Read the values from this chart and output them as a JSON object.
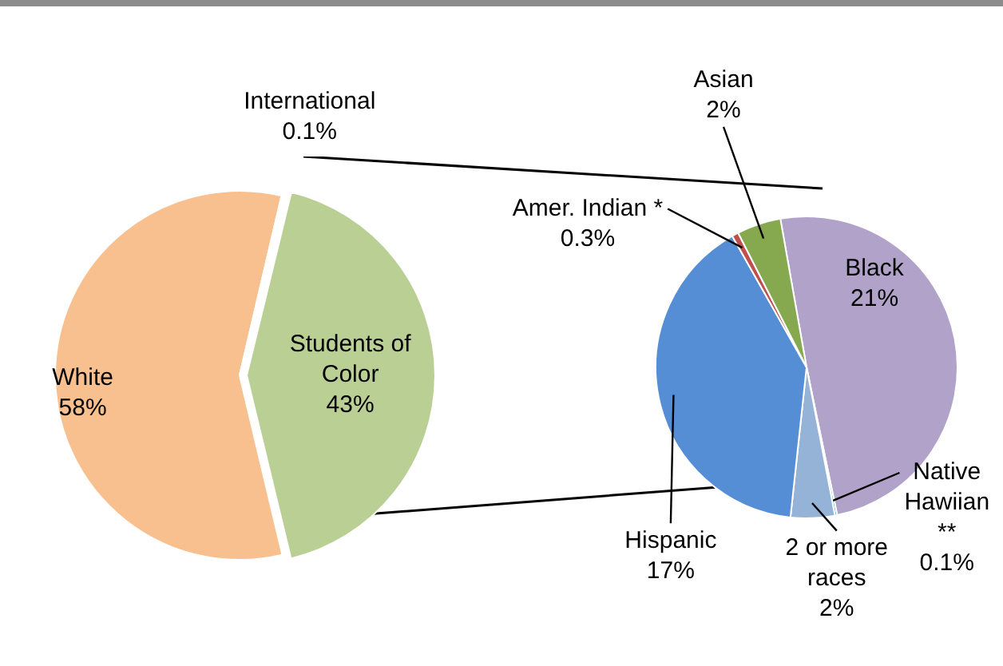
{
  "chart_data": [
    {
      "type": "pie",
      "categories": [
        "Students of Color",
        "White",
        "International"
      ],
      "values": [
        43,
        58,
        0.1
      ],
      "value_labels": [
        "43%",
        "58%",
        "0.1%"
      ],
      "colors": [
        "#bacf94",
        "#f9c08f",
        "#e6a0a0"
      ],
      "legend": false
    },
    {
      "type": "pie",
      "categories": [
        "Black",
        "Native Hawiian **",
        "2 or more races",
        "Hispanic",
        "Amer. Indian *",
        "Asian"
      ],
      "values": [
        21,
        0.1,
        2,
        17,
        0.3,
        2
      ],
      "value_labels": [
        "21%",
        "0.1%",
        "2%",
        "17%",
        "0.3%",
        "2%"
      ],
      "colors": [
        "#b1a2c9",
        "#4bacc6",
        "#95b3d7",
        "#558ed5",
        "#c0504d",
        "#86a84f"
      ],
      "legend": false
    }
  ]
}
